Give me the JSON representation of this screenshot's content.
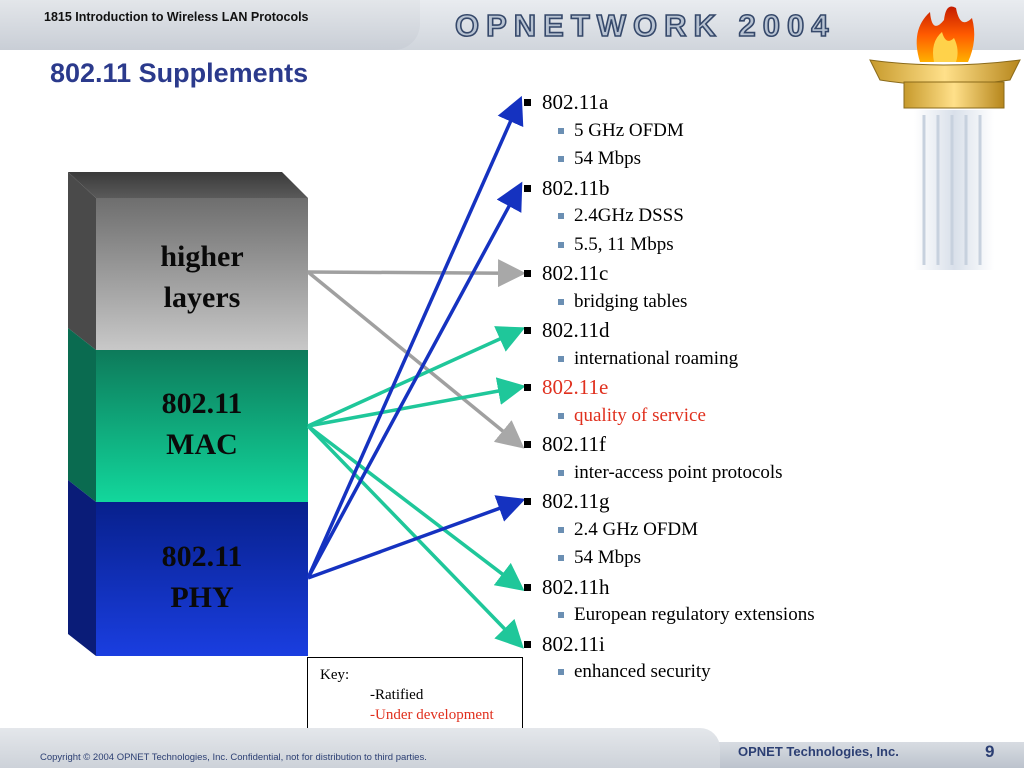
{
  "header": {
    "course_title": "1815 Introduction to Wireless LAN Protocols",
    "brand": "OPNETWORK 2004"
  },
  "slide": {
    "title": "802.11 Supplements"
  },
  "stack": {
    "higher_line1": "higher",
    "higher_line2": "layers",
    "mac_line1": "802.11",
    "mac_line2": "MAC",
    "phy_line1": "802.11",
    "phy_line2": "PHY"
  },
  "supplements": [
    {
      "name": "802.11a",
      "status": "ratified",
      "details": [
        "5 GHz OFDM",
        "54 Mbps"
      ]
    },
    {
      "name": "802.11b",
      "status": "ratified",
      "details": [
        "2.4GHz DSSS",
        "5.5, 11 Mbps"
      ]
    },
    {
      "name": "802.11c",
      "status": "ratified",
      "details": [
        "bridging tables"
      ]
    },
    {
      "name": "802.11d",
      "status": "ratified",
      "details": [
        "international roaming"
      ]
    },
    {
      "name": "802.11e",
      "status": "under development",
      "details": [
        "quality of service"
      ]
    },
    {
      "name": "802.11f",
      "status": "ratified",
      "details": [
        "inter-access point protocols"
      ]
    },
    {
      "name": "802.11g",
      "status": "ratified",
      "details": [
        "2.4 GHz OFDM",
        "54 Mbps"
      ]
    },
    {
      "name": "802.11h",
      "status": "ratified",
      "details": [
        "European regulatory extensions"
      ]
    },
    {
      "name": "802.11i",
      "status": "ratified",
      "details": [
        "enhanced security"
      ]
    }
  ],
  "connections": [
    {
      "from": "higher layers",
      "to": "802.11c"
    },
    {
      "from": "higher layers",
      "to": "802.11f"
    },
    {
      "from": "802.11 MAC",
      "to": "802.11d"
    },
    {
      "from": "802.11 MAC",
      "to": "802.11e"
    },
    {
      "from": "802.11 MAC",
      "to": "802.11h"
    },
    {
      "from": "802.11 MAC",
      "to": "802.11i"
    },
    {
      "from": "802.11 PHY",
      "to": "802.11a"
    },
    {
      "from": "802.11 PHY",
      "to": "802.11b"
    },
    {
      "from": "802.11 PHY",
      "to": "802.11g"
    }
  ],
  "colors": {
    "higher_layers": "#a0a0a0",
    "mac": "#1fc79a",
    "phy": "#1532c0",
    "under_development": "#e0301e",
    "title": "#2b3a8c"
  },
  "key": {
    "title": "Key:",
    "ratified": "-Ratified",
    "under_development": "-Under development"
  },
  "footer": {
    "copyright": "Copyright © 2004 OPNET Technologies, Inc.  Confidential, not for distribution to third parties.",
    "company": "OPNET Technologies, Inc.",
    "page_number": "9"
  }
}
